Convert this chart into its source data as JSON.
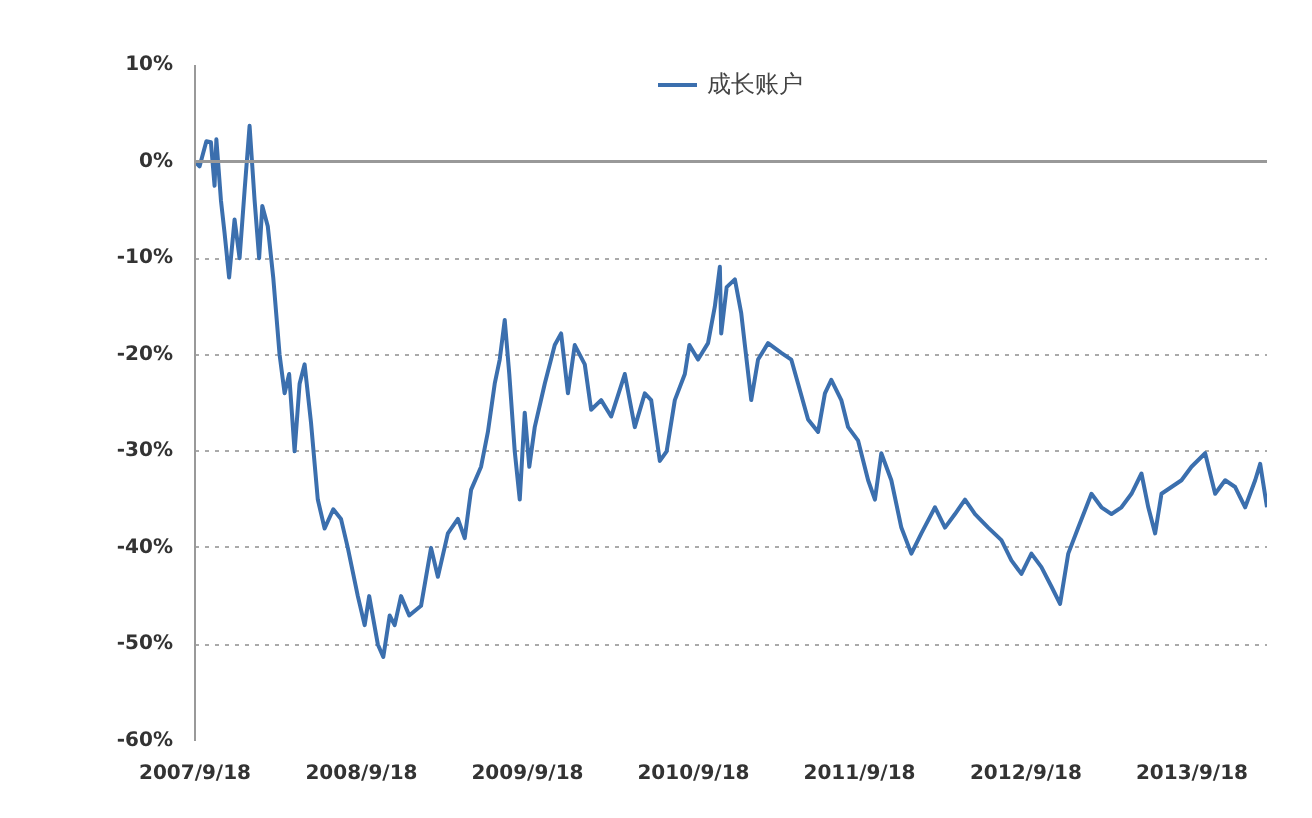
{
  "chart_data": {
    "type": "line",
    "x": [
      "2007-09-18",
      "2007-09-28",
      "2007-10-13",
      "2007-10-23",
      "2007-10-31",
      "2007-11-04",
      "2007-11-14",
      "2007-11-22",
      "2007-12-02",
      "2007-12-14",
      "2007-12-25",
      "2008-01-05",
      "2008-01-16",
      "2008-01-27",
      "2008-02-06",
      "2008-02-13",
      "2008-02-25",
      "2008-03-08",
      "2008-03-22",
      "2008-04-02",
      "2008-04-12",
      "2008-04-24",
      "2008-05-05",
      "2008-05-16",
      "2008-05-30",
      "2008-06-14",
      "2008-06-29",
      "2008-07-18",
      "2008-08-04",
      "2008-08-19",
      "2008-09-10",
      "2008-09-25",
      "2008-10-05",
      "2008-10-24",
      "2008-11-05",
      "2008-11-19",
      "2008-11-30",
      "2008-12-14",
      "2009-01-01",
      "2009-01-27",
      "2009-02-18",
      "2009-03-05",
      "2009-03-27",
      "2009-04-18",
      "2009-05-03",
      "2009-05-17",
      "2009-06-08",
      "2009-06-23",
      "2009-07-08",
      "2009-07-19",
      "2009-07-30",
      "2009-08-09",
      "2009-08-21",
      "2009-09-01",
      "2009-09-12",
      "2009-09-22",
      "2009-10-04",
      "2009-10-26",
      "2009-11-17",
      "2009-12-01",
      "2009-12-16",
      "2009-12-31",
      "2010-01-22",
      "2010-02-05",
      "2010-02-27",
      "2010-03-21",
      "2010-04-20",
      "2010-05-12",
      "2010-06-03",
      "2010-06-17",
      "2010-07-06",
      "2010-07-21",
      "2010-08-08",
      "2010-08-30",
      "2010-09-09",
      "2010-09-28",
      "2010-10-20",
      "2010-11-04",
      "2010-11-15",
      "2010-11-18",
      "2010-11-30",
      "2010-12-18",
      "2011-01-01",
      "2011-01-09",
      "2011-01-23",
      "2011-02-07",
      "2011-03-01",
      "2011-03-30",
      "2011-04-21",
      "2011-05-06",
      "2011-05-28",
      "2011-06-19",
      "2011-07-04",
      "2011-07-18",
      "2011-08-09",
      "2011-08-24",
      "2011-09-15",
      "2011-10-07",
      "2011-10-22",
      "2011-11-05",
      "2011-11-27",
      "2011-12-19",
      "2012-01-10",
      "2012-02-01",
      "2012-03-02",
      "2012-03-24",
      "2012-04-15",
      "2012-05-07",
      "2012-05-29",
      "2012-06-27",
      "2012-07-26",
      "2012-08-17",
      "2012-09-08",
      "2012-09-30",
      "2012-10-22",
      "2012-11-13",
      "2012-12-02",
      "2012-12-20",
      "2013-01-11",
      "2013-02-09",
      "2013-03-03",
      "2013-03-25",
      "2013-04-16",
      "2013-05-08",
      "2013-05-30",
      "2013-06-14",
      "2013-06-29",
      "2013-07-13",
      "2013-08-04",
      "2013-08-26",
      "2013-09-17",
      "2013-10-17",
      "2013-11-08",
      "2013-11-30",
      "2013-12-22",
      "2014-01-13",
      "2014-02-04",
      "2014-02-15",
      "2014-03-02"
    ],
    "series": [
      {
        "name": "成长账户",
        "color": "#3b6fae",
        "values": [
          0,
          -0.5,
          2.1,
          2,
          -2.5,
          2.3,
          -4,
          -7.4,
          -12,
          -6,
          -10,
          -3,
          3.7,
          -4,
          -10,
          -4.6,
          -6.7,
          -12,
          -20,
          -24,
          -22,
          -30,
          -23,
          -21,
          -27,
          -35,
          -38,
          -36,
          -37,
          -40,
          -45,
          -48,
          -45,
          -50,
          -51.3,
          -47,
          -48,
          -45,
          -47,
          -46,
          -40,
          -43,
          -38.5,
          -37,
          -39,
          -34,
          -31.6,
          -28,
          -23,
          -20.5,
          -16.4,
          -22,
          -30,
          -35,
          -26,
          -31.6,
          -27.5,
          -23,
          -19,
          -17.8,
          -24,
          -19,
          -21,
          -25.7,
          -24.7,
          -26.4,
          -22,
          -27.5,
          -24,
          -24.7,
          -31,
          -30,
          -24.7,
          -22,
          -19,
          -20.5,
          -18.8,
          -15,
          -10.9,
          -17.8,
          -13,
          -12.2,
          -15.7,
          -19,
          -24.7,
          -20.5,
          -18.8,
          -19.8,
          -20.5,
          -23,
          -26.7,
          -28,
          -24,
          -22.6,
          -24.7,
          -27.5,
          -28.9,
          -33,
          -35,
          -30.2,
          -33,
          -37.9,
          -40.6,
          -38.5,
          -35.8,
          -37.9,
          -36.5,
          -35,
          -36.5,
          -37.9,
          -39.2,
          -41.3,
          -42.7,
          -40.6,
          -42,
          -44,
          -45.8,
          -40.6,
          -37.9,
          -34.4,
          -35.8,
          -36.5,
          -35.8,
          -34.4,
          -32.3,
          -35.8,
          -38.5,
          -34.4,
          -33.7,
          -33,
          -31.6,
          -30.2,
          -34.4,
          -33,
          -33.7,
          -35.8,
          -33,
          -31.3,
          -35.8
        ]
      }
    ],
    "xlim": [
      "2007-09-18",
      "2014-03-02"
    ],
    "xticks": [
      {
        "value": "2007-09-18",
        "label": "2007/9/18"
      },
      {
        "value": "2008-09-18",
        "label": "2008/9/18"
      },
      {
        "value": "2009-09-18",
        "label": "2009/9/18"
      },
      {
        "value": "2010-09-18",
        "label": "2010/9/18"
      },
      {
        "value": "2011-09-18",
        "label": "2011/9/18"
      },
      {
        "value": "2012-09-18",
        "label": "2012/9/18"
      },
      {
        "value": "2013-09-18",
        "label": "2013/9/18"
      }
    ],
    "ylim": [
      -60,
      10
    ],
    "yticks": [
      {
        "value": -60,
        "label": "-60%"
      },
      {
        "value": -50,
        "label": "-50%"
      },
      {
        "value": -40,
        "label": "-40%"
      },
      {
        "value": -30,
        "label": "-30%"
      },
      {
        "value": -20,
        "label": "-20%"
      },
      {
        "value": -10,
        "label": "-10%"
      },
      {
        "value": 0,
        "label": "0%"
      },
      {
        "value": 10,
        "label": "10%"
      }
    ],
    "ref_lines": [
      {
        "axis": "y",
        "value": 0,
        "color": "#999999",
        "line_style": "solid"
      }
    ],
    "grid": "y",
    "legend": "top",
    "line_style": "solid",
    "marker": "none"
  }
}
